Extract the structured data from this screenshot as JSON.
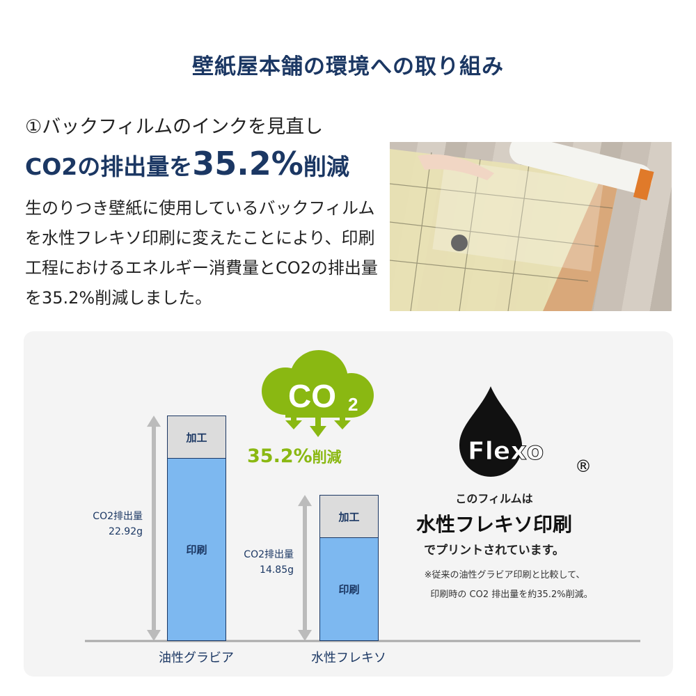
{
  "header": {
    "title": "壁紙屋本舗の環境への取り組み"
  },
  "section": {
    "subtitle": "①バックフィルムのインクを見直し",
    "headline_prefix": "CO2の排出量を",
    "headline_value": "35.2%",
    "headline_suffix": "削減",
    "paragraph": "生のりつき壁紙に使用しているバックフィルムを水性フレキソ印刷に変えたことにより、印刷工程におけるエネルギー消費量とCO2の排出量を35.2%削減しました。"
  },
  "infographic": {
    "cloud_text": "CO",
    "cloud_sub": "2",
    "reduction": "35.2%",
    "reduction_suffix": "削減",
    "green": "#8ab812",
    "logo_text": "Flexo",
    "registered": "®",
    "line1": "このフィルムは",
    "line2": "水性フレキソ印刷",
    "line3": "でプリントされています。",
    "note1": "※従来の油性グラビア印刷と比較して、",
    "note2": "印刷時の CO2 排出量を約35.2%削減。"
  },
  "chart_data": {
    "type": "bar",
    "stacked": true,
    "categories": [
      "油性グラビア",
      "水性フレキソ"
    ],
    "values": [
      22.92,
      14.85
    ],
    "value_labels": [
      [
        "CO2排出量",
        "22.92g"
      ],
      [
        "CO2排出量",
        "14.85g"
      ]
    ],
    "segments": [
      "加工",
      "印刷"
    ],
    "colors": {
      "加工": "#dcdcdc",
      "印刷": "#7db8f0"
    },
    "unit": "g"
  }
}
